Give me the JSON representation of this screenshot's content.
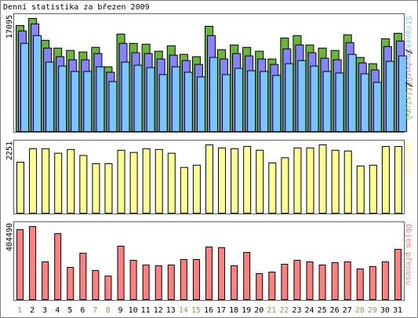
{
  "title": "Denní statistika za březen 2009",
  "chart_data": [
    {
      "type": "bar",
      "ylim": [
        0,
        17095
      ],
      "yticks": [
        17095
      ],
      "series": [
        {
          "name": "Přístupů",
          "color": "#6cb43c",
          "values": [
            16034,
            17095,
            13794,
            12615,
            12262,
            12026,
            12733,
            9786,
            14738,
            13323,
            13205,
            12144,
            12969,
            11672,
            11318,
            15917,
            12380,
            13087,
            12733,
            12144,
            10965,
            14148,
            14502,
            13087,
            12615,
            12262,
            14620,
            11201,
            10257,
            14030,
            14855
          ]
        },
        {
          "name": "Souborů",
          "color": "#8484ff",
          "values": [
            15209,
            16270,
            12615,
            11318,
            10847,
            10847,
            11790,
            8960,
            13323,
            11908,
            11790,
            10965,
            11554,
            10729,
            10139,
            14502,
            10965,
            11790,
            11436,
            10965,
            10139,
            12497,
            13087,
            11908,
            11083,
            10847,
            13441,
            10375,
            9314,
            12851,
            13676
          ]
        },
        {
          "name": "Stránek",
          "color": "#7cc4ff",
          "values": [
            13323,
            14502,
            10493,
            9904,
            9078,
            9078,
            9786,
            7546,
            10493,
            10022,
            9668,
            8607,
            9786,
            8960,
            8253,
            11201,
            8607,
            9550,
            9196,
            9078,
            8489,
            10257,
            10729,
            9904,
            9078,
            8843,
            11672,
            8725,
            7428,
            10611,
            11436
          ]
        }
      ]
    },
    {
      "type": "bar",
      "ylim": [
        0,
        2251
      ],
      "yticks": [
        2251
      ],
      "series": [
        {
          "name": "Návštěv",
          "color": "#ffff90",
          "values": [
            1680,
            2124,
            2124,
            1976,
            2100,
            1902,
            1630,
            1630,
            2075,
            2001,
            2124,
            2100,
            1976,
            1507,
            1581,
            2251,
            2149,
            2124,
            2198,
            2075,
            1655,
            1828,
            2149,
            2149,
            2251,
            2075,
            2050,
            1556,
            1581,
            2198,
            2198
          ]
        }
      ]
    },
    {
      "type": "bar",
      "ylim": [
        0,
        404490
      ],
      "yticks": [
        404490
      ],
      "categories": [
        "1",
        "2",
        "3",
        "4",
        "5",
        "6",
        "7",
        "8",
        "9",
        "10",
        "11",
        "12",
        "13",
        "14",
        "15",
        "16",
        "17",
        "18",
        "19",
        "20",
        "21",
        "22",
        "23",
        "24",
        "25",
        "26",
        "27",
        "28",
        "29",
        "30",
        "31"
      ],
      "category_colors": [
        "#6cb43c",
        "#000000",
        "#000000",
        "#000000",
        "#000000",
        "#000000",
        "#6cb43c",
        "#6cb43c",
        "#000000",
        "#000000",
        "#000000",
        "#000000",
        "#000000",
        "#6cb43c",
        "#6cb43c",
        "#000000",
        "#000000",
        "#000000",
        "#000000",
        "#000000",
        "#6cb43c",
        "#6cb43c",
        "#000000",
        "#000000",
        "#000000",
        "#000000",
        "#000000",
        "#6cb43c",
        "#6cb43c",
        "#000000",
        "#000000"
      ],
      "series": [
        {
          "name": "Objem přenosu",
          "color": "#ff8080",
          "values": [
            387061,
            404490,
            208752,
            365316,
            178309,
            256591,
            160913,
            130470,
            295732,
            217450,
            191356,
            187007,
            191356,
            221799,
            221799,
            291383,
            287034,
            187007,
            260940,
            143517,
            152215,
            195705,
            217450,
            208752,
            191356,
            204403,
            208752,
            169611,
            182658,
            208752,
            278336
          ]
        }
      ]
    }
  ]
}
